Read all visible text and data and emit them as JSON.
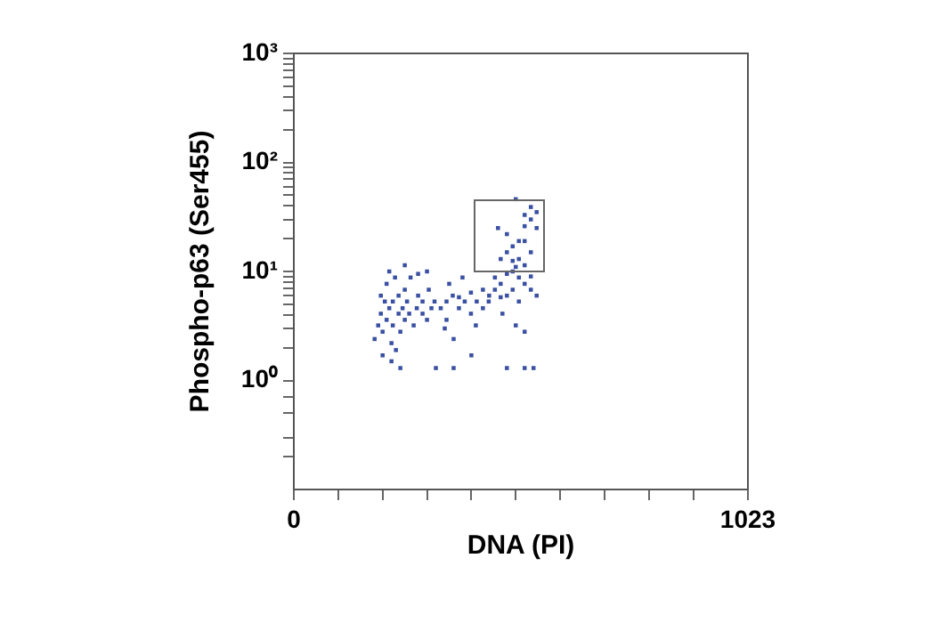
{
  "chart_data": {
    "type": "scatter",
    "xlabel": "DNA (PI)",
    "ylabel": "Phospho-p63 (Ser455)",
    "xlim": [
      0,
      1023
    ],
    "ylim": [
      0.1,
      1000
    ],
    "log": "y",
    "grid": false,
    "legend": false,
    "marker": "square",
    "xticks": [
      {
        "value": 0,
        "label": "0"
      },
      {
        "value": 100,
        "label": null
      },
      {
        "value": 200,
        "label": null
      },
      {
        "value": 300,
        "label": null
      },
      {
        "value": 400,
        "label": null
      },
      {
        "value": 500,
        "label": null
      },
      {
        "value": 600,
        "label": null
      },
      {
        "value": 700,
        "label": null
      },
      {
        "value": 800,
        "label": null
      },
      {
        "value": 900,
        "label": null
      },
      {
        "value": 1023,
        "label": "1023"
      }
    ],
    "yticks": [
      {
        "value": 0.2,
        "label": null
      },
      {
        "value": 0.3,
        "label": null
      },
      {
        "value": 0.5,
        "label": null
      },
      {
        "value": 0.7,
        "label": null
      },
      {
        "value": 1,
        "label": "10⁰"
      },
      {
        "value": 2,
        "label": null
      },
      {
        "value": 3,
        "label": null
      },
      {
        "value": 4,
        "label": null
      },
      {
        "value": 5,
        "label": null
      },
      {
        "value": 6,
        "label": null
      },
      {
        "value": 7,
        "label": null
      },
      {
        "value": 8,
        "label": null
      },
      {
        "value": 9,
        "label": null
      },
      {
        "value": 10,
        "label": "10¹"
      },
      {
        "value": 20,
        "label": null
      },
      {
        "value": 30,
        "label": null
      },
      {
        "value": 40,
        "label": null
      },
      {
        "value": 50,
        "label": null
      },
      {
        "value": 60,
        "label": null
      },
      {
        "value": 70,
        "label": null
      },
      {
        "value": 80,
        "label": null
      },
      {
        "value": 90,
        "label": null
      },
      {
        "value": 100,
        "label": "10²"
      },
      {
        "value": 200,
        "label": null
      },
      {
        "value": 300,
        "label": null
      },
      {
        "value": 400,
        "label": null
      },
      {
        "value": 500,
        "label": null
      },
      {
        "value": 600,
        "label": null
      },
      {
        "value": 700,
        "label": null
      },
      {
        "value": 800,
        "label": null
      },
      {
        "value": 900,
        "label": null
      },
      {
        "value": 1000,
        "label": "10³"
      }
    ],
    "series": [
      {
        "color": "#3a50a2",
        "x": [
          182,
          190,
          196,
          196,
          200,
          205,
          209,
          209,
          215,
          220,
          223,
          223,
          228,
          230,
          236,
          236,
          240,
          245,
          250,
          250,
          255,
          260,
          263,
          270,
          277,
          280,
          290,
          290,
          300,
          304,
          310,
          317,
          220,
          240,
          200,
          215,
          250,
          280,
          331,
          344,
          344,
          358,
          372,
          372,
          385,
          399,
          399,
          412,
          426,
          426,
          350,
          380,
          340,
          360,
          320,
          360,
          400,
          410,
          440,
          300,
          439,
          453,
          453,
          466,
          466,
          480,
          480,
          493,
          493,
          507,
          507,
          520,
          520,
          534,
          547,
          470,
          500,
          520,
          480,
          520,
          540,
          534,
          500,
          466,
          480,
          493,
          480,
          507,
          520,
          534,
          520,
          507,
          534,
          547,
          534,
          460,
          500,
          493,
          520,
          547
        ],
        "values": [
          2.4,
          3.2,
          4.1,
          6.0,
          2.8,
          5.3,
          3.6,
          7.7,
          4.6,
          2.2,
          3.2,
          5.3,
          8.8,
          1.9,
          4.1,
          6.0,
          2.8,
          4.6,
          3.6,
          6.8,
          5.3,
          4.1,
          8.8,
          3.2,
          4.6,
          6.0,
          4.1,
          5.3,
          3.6,
          6.8,
          4.6,
          5.3,
          1.5,
          1.3,
          1.7,
          10,
          11.4,
          9.5,
          4.6,
          5.3,
          3.6,
          6.0,
          4.6,
          5.8,
          5.3,
          4.1,
          6.4,
          5.3,
          4.6,
          6.8,
          7.7,
          8.8,
          3.0,
          2.4,
          1.3,
          1.3,
          1.7,
          3.2,
          6.0,
          10,
          5.3,
          6.8,
          8.8,
          5.8,
          7.7,
          6.0,
          9.5,
          6.8,
          10,
          8.8,
          5.3,
          7.7,
          11.4,
          6.8,
          6.0,
          4.1,
          3.2,
          2.8,
          1.3,
          1.3,
          1.3,
          9,
          11,
          13,
          15,
          17,
          22,
          19,
          26,
          30,
          33,
          13,
          15,
          25,
          39,
          25,
          46,
          12.5,
          19,
          35
        ]
      }
    ]
  }
}
